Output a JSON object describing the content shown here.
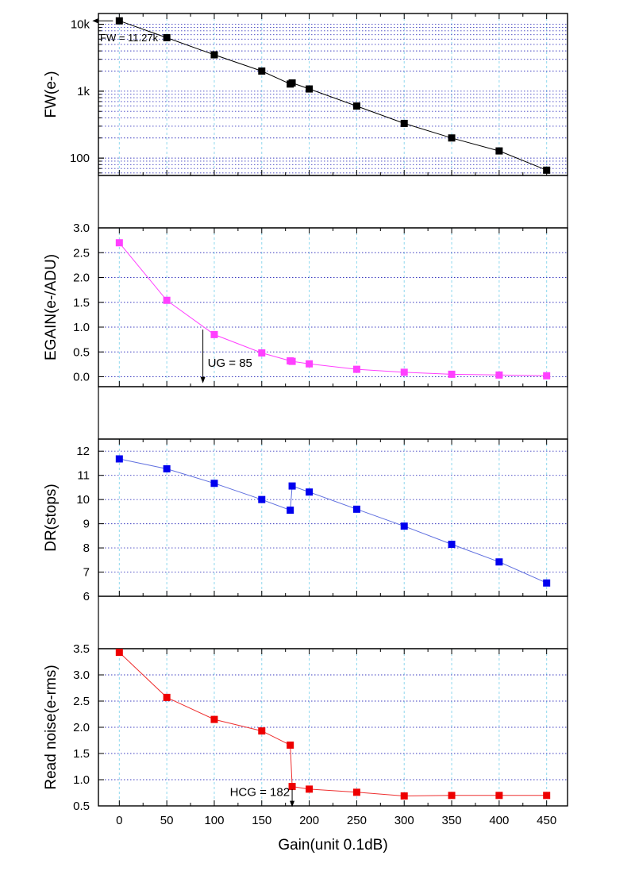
{
  "chart_data": [
    {
      "type": "scatter",
      "panel": "fw",
      "ylabel": "FW(e-)",
      "yscale": "log",
      "ylim": [
        55,
        14500
      ],
      "yticks": [
        {
          "value": 10000,
          "label": "10k"
        },
        {
          "value": 1000,
          "label": "1k"
        },
        {
          "value": 100,
          "label": "100"
        }
      ],
      "color": "#000000",
      "line_color": "#000000",
      "grid": true,
      "series": [
        {
          "x": [
            0,
            50,
            100,
            150,
            180,
            182,
            200,
            250,
            300,
            350,
            400,
            450
          ],
          "y": [
            11270,
            6300,
            3500,
            2000,
            1280,
            1330,
            1080,
            600,
            330,
            200,
            128,
            66
          ]
        }
      ],
      "annotations": [
        {
          "text": "FW = 11.27k",
          "x": 0,
          "y": 11270,
          "arrow": "left"
        }
      ]
    },
    {
      "type": "scatter",
      "panel": "egain",
      "ylabel": "EGAIN(e-/ADU)",
      "ylim": [
        -0.2,
        3.0
      ],
      "yticks": [
        {
          "value": 0.0,
          "label": "0.0"
        },
        {
          "value": 0.5,
          "label": "0.5"
        },
        {
          "value": 1.0,
          "label": "1.0"
        },
        {
          "value": 1.5,
          "label": "1.5"
        },
        {
          "value": 2.0,
          "label": "2.0"
        },
        {
          "value": 2.5,
          "label": "2.5"
        },
        {
          "value": 3.0,
          "label": "3.0"
        }
      ],
      "color": "#ff40ff",
      "line_color": "#ff40ff",
      "grid": true,
      "series": [
        {
          "x": [
            0,
            50,
            100,
            150,
            180,
            182,
            200,
            250,
            300,
            350,
            400,
            450
          ],
          "y": [
            2.7,
            1.54,
            0.85,
            0.48,
            0.32,
            0.31,
            0.26,
            0.15,
            0.09,
            0.05,
            0.035,
            0.02
          ]
        }
      ],
      "annotations": [
        {
          "text": "UG = 85",
          "x": 88,
          "y": -0.1,
          "arrow": "down"
        }
      ]
    },
    {
      "type": "scatter",
      "panel": "dr",
      "ylabel": "DR(stops)",
      "ylim": [
        6,
        12.5
      ],
      "yticks": [
        {
          "value": 6,
          "label": "6"
        },
        {
          "value": 7,
          "label": "7"
        },
        {
          "value": 8,
          "label": "8"
        },
        {
          "value": 9,
          "label": "9"
        },
        {
          "value": 10,
          "label": "10"
        },
        {
          "value": 11,
          "label": "11"
        },
        {
          "value": 12,
          "label": "12"
        }
      ],
      "color": "#0000ee",
      "line_color": "#5f6fdf",
      "grid": true,
      "series": [
        {
          "x": [
            0,
            50,
            100,
            150,
            180,
            182,
            200,
            250,
            300,
            350,
            400,
            450
          ],
          "y": [
            11.68,
            11.27,
            10.67,
            10.0,
            9.56,
            10.56,
            10.31,
            9.6,
            8.9,
            8.15,
            7.42,
            6.55
          ]
        }
      ],
      "annotations": []
    },
    {
      "type": "scatter",
      "panel": "readnoise",
      "ylabel": "Read noise(e-rms)",
      "xlabel": "Gain(unit 0.1dB)",
      "xlim": [
        -22,
        472
      ],
      "ylim": [
        0.5,
        3.5
      ],
      "xticks": [
        {
          "value": 0,
          "label": "0"
        },
        {
          "value": 50,
          "label": "50"
        },
        {
          "value": 100,
          "label": "100"
        },
        {
          "value": 150,
          "label": "150"
        },
        {
          "value": 200,
          "label": "200"
        },
        {
          "value": 250,
          "label": "250"
        },
        {
          "value": 300,
          "label": "300"
        },
        {
          "value": 350,
          "label": "350"
        },
        {
          "value": 400,
          "label": "400"
        },
        {
          "value": 450,
          "label": "450"
        }
      ],
      "yticks": [
        {
          "value": 0.5,
          "label": "0.5"
        },
        {
          "value": 1.0,
          "label": "1.0"
        },
        {
          "value": 1.5,
          "label": "1.5"
        },
        {
          "value": 2.0,
          "label": "2.0"
        },
        {
          "value": 2.5,
          "label": "2.5"
        },
        {
          "value": 3.0,
          "label": "3.0"
        },
        {
          "value": 3.5,
          "label": "3.5"
        }
      ],
      "color": "#ee0000",
      "line_color": "#ee3030",
      "grid": true,
      "series": [
        {
          "x": [
            0,
            50,
            100,
            150,
            180,
            182,
            200,
            250,
            300,
            350,
            400,
            450
          ],
          "y": [
            3.43,
            2.57,
            2.15,
            1.93,
            1.66,
            0.87,
            0.82,
            0.76,
            0.69,
            0.7,
            0.7,
            0.7
          ]
        }
      ],
      "annotations": [
        {
          "text": "HCG = 182",
          "x": 182,
          "y": 0.52,
          "arrow": "down"
        }
      ]
    }
  ]
}
